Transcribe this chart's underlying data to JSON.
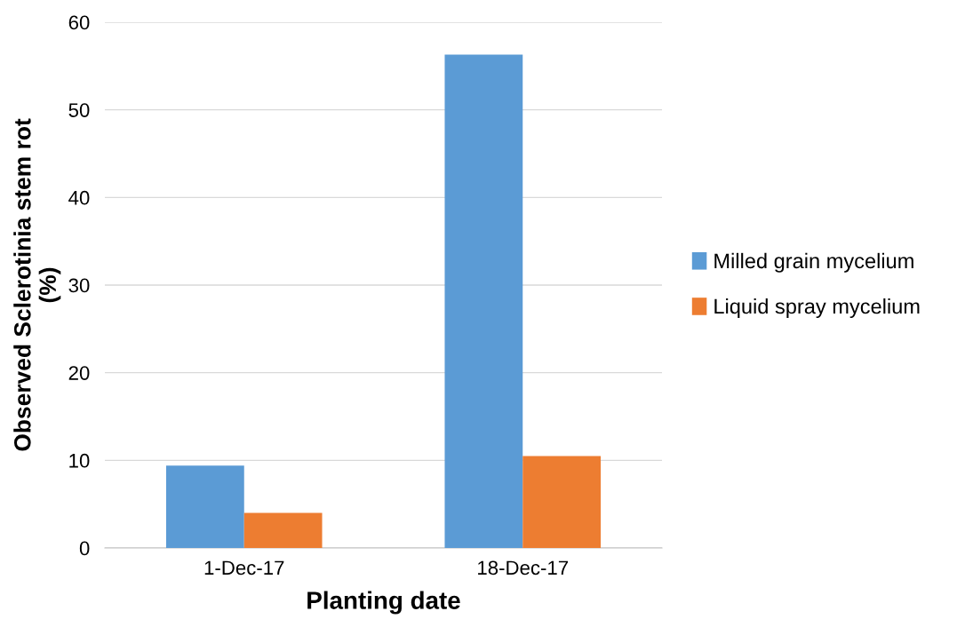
{
  "chart_data": {
    "type": "bar",
    "xlabel": "Planting date",
    "ylabel": "Observed Sclerotinia stem rot\n(%)",
    "categories": [
      "1-Dec-17",
      "18-Dec-17"
    ],
    "series": [
      {
        "name": "Milled grain mycelium",
        "color": "#5b9bd5",
        "values": [
          9.4,
          56.3
        ]
      },
      {
        "name": "Liquid spray mycelium",
        "color": "#ed7d31",
        "values": [
          4.0,
          10.5
        ]
      }
    ],
    "ylim": [
      0,
      60
    ],
    "yticks": [
      0,
      10,
      20,
      30,
      40,
      50,
      60
    ],
    "grid": "y",
    "legend": "right"
  }
}
